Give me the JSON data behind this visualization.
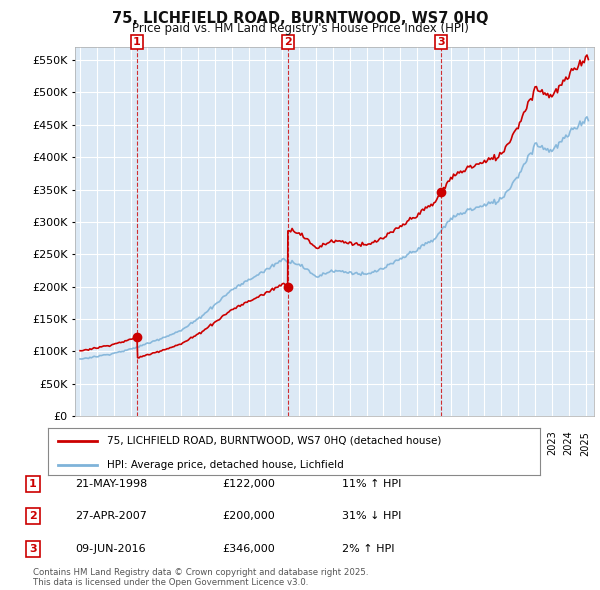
{
  "title": "75, LICHFIELD ROAD, BURNTWOOD, WS7 0HQ",
  "subtitle": "Price paid vs. HM Land Registry's House Price Index (HPI)",
  "background_color": "#ffffff",
  "plot_bg_color": "#dce9f5",
  "grid_color": "#ffffff",
  "ylim": [
    0,
    570000
  ],
  "yticks": [
    0,
    50000,
    100000,
    150000,
    200000,
    250000,
    300000,
    350000,
    400000,
    450000,
    500000,
    550000
  ],
  "ytick_labels": [
    "£0",
    "£50K",
    "£100K",
    "£150K",
    "£200K",
    "£250K",
    "£300K",
    "£350K",
    "£400K",
    "£450K",
    "£500K",
    "£550K"
  ],
  "sale_color": "#cc0000",
  "hpi_color": "#7fb3d9",
  "sale_label": "75, LICHFIELD ROAD, BURNTWOOD, WS7 0HQ (detached house)",
  "hpi_label": "HPI: Average price, detached house, Lichfield",
  "transactions": [
    {
      "num": 1,
      "date": "21-MAY-1998",
      "price": 122000,
      "hpi_rel": "11% ↑ HPI",
      "x_year": 1998.38
    },
    {
      "num": 2,
      "date": "27-APR-2007",
      "price": 200000,
      "hpi_rel": "31% ↓ HPI",
      "x_year": 2007.32
    },
    {
      "num": 3,
      "date": "09-JUN-2016",
      "price": 346000,
      "hpi_rel": "2% ↑ HPI",
      "x_year": 2016.44
    }
  ],
  "footer": "Contains HM Land Registry data © Crown copyright and database right 2025.\nThis data is licensed under the Open Government Licence v3.0.",
  "transaction_box_color": "#cc0000",
  "xlim": [
    1994.7,
    2025.5
  ]
}
